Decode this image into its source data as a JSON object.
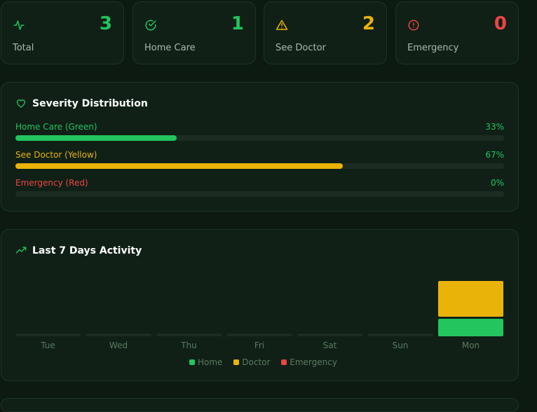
{
  "stats": [
    {
      "label": "Total",
      "value": "3",
      "color": "#22c55e",
      "icon": "activity-icon"
    },
    {
      "label": "Home Care",
      "value": "1",
      "color": "#22c55e",
      "icon": "check-circle-icon"
    },
    {
      "label": "See Doctor",
      "value": "2",
      "color": "#eab308",
      "icon": "warning-triangle-icon"
    },
    {
      "label": "Emergency",
      "value": "0",
      "color": "#ef4444",
      "icon": "alert-circle-icon"
    }
  ],
  "severity": {
    "title": "Severity Distribution",
    "icon": "heart-icon",
    "rows": [
      {
        "label": "Home Care (Green)",
        "percent_text": "33%",
        "fraction": 0.33,
        "color": "#22c55e"
      },
      {
        "label": "See Doctor (Yellow)",
        "percent_text": "67%",
        "fraction": 0.67,
        "color": "#eab308"
      },
      {
        "label": "Emergency (Red)",
        "percent_text": "0%",
        "fraction": 0,
        "color": "#ef4444"
      }
    ]
  },
  "activity": {
    "title": "Last 7 Days Activity",
    "icon": "trending-up-icon",
    "legend": {
      "home": "Home",
      "doctor": "Doctor",
      "emergency": "Emergency"
    },
    "colors": {
      "home": "#22c55e",
      "doctor": "#eab308",
      "emergency": "#ef4444"
    }
  },
  "chart_data": {
    "type": "bar",
    "stacked": true,
    "categories": [
      "Tue",
      "Wed",
      "Thu",
      "Fri",
      "Sat",
      "Sun",
      "Mon"
    ],
    "series": [
      {
        "name": "Home",
        "values": [
          0,
          0,
          0,
          0,
          0,
          0,
          1
        ]
      },
      {
        "name": "Doctor",
        "values": [
          0,
          0,
          0,
          0,
          0,
          0,
          2
        ]
      },
      {
        "name": "Emergency",
        "values": [
          0,
          0,
          0,
          0,
          0,
          0,
          0
        ]
      }
    ],
    "title": "Last 7 Days Activity",
    "legend_position": "bottom",
    "grid": false
  }
}
